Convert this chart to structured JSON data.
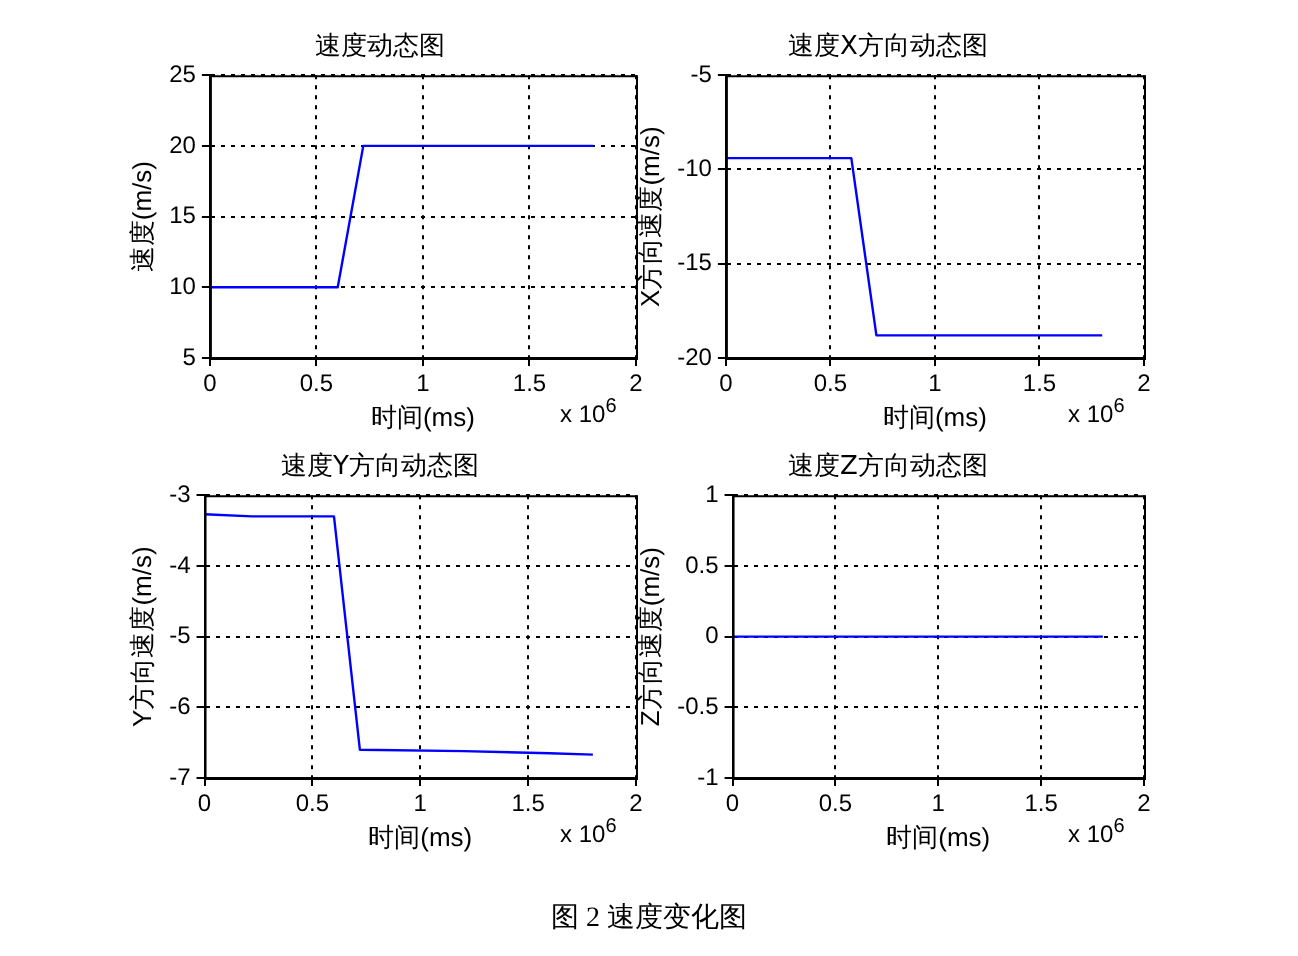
{
  "chart_data": [
    {
      "type": "line",
      "title": "速度动态图",
      "xlabel": "时间(ms)",
      "ylabel": "速度(m/s)",
      "annotations": [
        "x 10$^{6}$",
        "图 2  速度变化图"
      ],
      "series": [
        {
          "color": "#0000ff",
          "x": [
            0,
            0.6,
            0.72,
            1.8
          ],
          "values": [
            10,
            10,
            20,
            20
          ]
        }
      ],
      "xlim": [
        0,
        2
      ],
      "xticks": [
        0,
        0.5,
        1,
        1.5,
        2
      ],
      "ylim": [
        5,
        25
      ],
      "yticks": [
        5,
        10,
        15,
        20,
        25
      ],
      "grid": true,
      "legend": false,
      "marker": "none",
      "line_style": "solid"
    },
    {
      "type": "line",
      "title": "速度X方向动态图",
      "xlabel": "时间(ms)",
      "ylabel": "X方向速度(m/s)",
      "annotations": [
        "x 10$^{6}$"
      ],
      "series": [
        {
          "color": "#0000ff",
          "x": [
            0,
            0.6,
            0.72,
            1.8
          ],
          "values": [
            -9.4,
            -9.4,
            -18.8,
            -18.8
          ]
        }
      ],
      "xlim": [
        0,
        2
      ],
      "xticks": [
        0,
        0.5,
        1,
        1.5,
        2
      ],
      "ylim": [
        -20,
        -5
      ],
      "yticks": [
        -20,
        -15,
        -10,
        -5
      ],
      "grid": true,
      "legend": false,
      "marker": "none",
      "line_style": "solid"
    },
    {
      "type": "line",
      "title": "速度Y方向动态图",
      "xlabel": "时间(ms)",
      "ylabel": "Y方向速度(m/s)",
      "annotations": [
        "x 10$^{6}$"
      ],
      "series": [
        {
          "color": "#0000ff",
          "x": [
            0,
            0.22,
            0.6,
            0.72,
            1.2,
            1.6,
            1.8
          ],
          "values": [
            -3.27,
            -3.3,
            -3.3,
            -6.6,
            -6.62,
            -6.65,
            -6.67
          ]
        }
      ],
      "xlim": [
        0,
        2
      ],
      "xticks": [
        0,
        0.5,
        1,
        1.5,
        2
      ],
      "ylim": [
        -7,
        -3
      ],
      "yticks": [
        -7,
        -6,
        -5,
        -4,
        -3
      ],
      "grid": true,
      "legend": false,
      "marker": "none",
      "line_style": "solid"
    },
    {
      "type": "line",
      "title": "速度Z方向动态图",
      "xlabel": "时间(ms)",
      "ylabel": "Z方向速度(m/s)",
      "annotations": [
        "x 10$^{6}$"
      ],
      "series": [
        {
          "color": "#0000ff",
          "x": [
            0,
            1.8
          ],
          "values": [
            0,
            0
          ]
        }
      ],
      "xlim": [
        0,
        2
      ],
      "xticks": [
        0,
        0.5,
        1,
        1.5,
        2
      ],
      "ylim": [
        -1,
        1
      ],
      "yticks": [
        -1,
        -0.5,
        0,
        0.5,
        1
      ],
      "grid": true,
      "legend": false,
      "marker": "none",
      "line_style": "solid"
    }
  ]
}
